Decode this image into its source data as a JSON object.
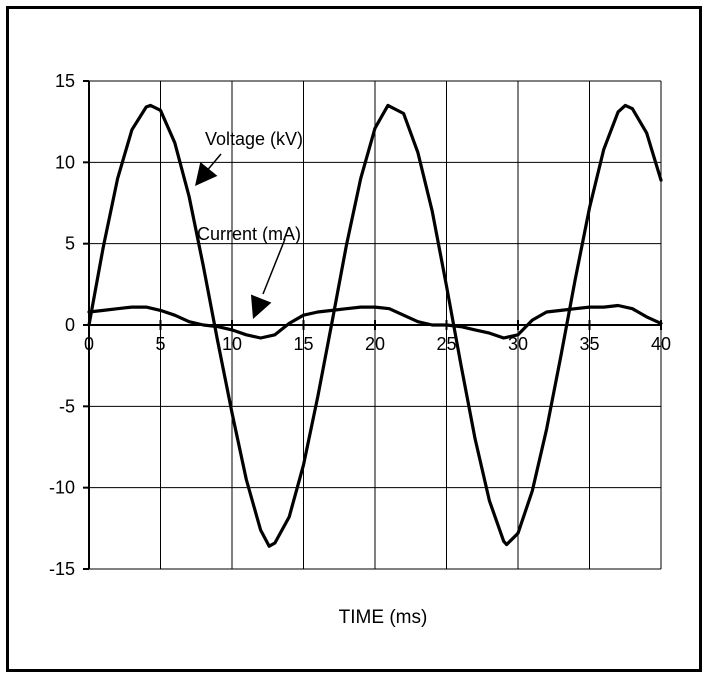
{
  "chart_data": {
    "type": "line",
    "title": "",
    "xlabel": "TIME (ms)",
    "ylabel": "",
    "xlim": [
      0,
      40
    ],
    "ylim": [
      -15,
      15
    ],
    "xticks": [
      "0",
      "5",
      "10",
      "15",
      "20",
      "25",
      "30",
      "35",
      "40"
    ],
    "yticks": [
      "15",
      "10",
      "5",
      "0",
      "-5",
      "-10",
      "-15"
    ],
    "grid": true,
    "legend": "none",
    "series": [
      {
        "name": "Voltage (kV)",
        "color": "#000000",
        "x": [
          0,
          1,
          2,
          3,
          4,
          4.3,
          5,
          6,
          7,
          8,
          9,
          10,
          11,
          12,
          12.6,
          13,
          14,
          15,
          16,
          17,
          18,
          19,
          20,
          20.9,
          22,
          23,
          24,
          25,
          26,
          27,
          28,
          29,
          29.2,
          30,
          31,
          32,
          33,
          34,
          35,
          36,
          37,
          37.5,
          38,
          39,
          40
        ],
        "values": [
          0,
          4.8,
          9.0,
          12.0,
          13.4,
          13.5,
          13.2,
          11.2,
          7.9,
          3.6,
          -1.0,
          -5.4,
          -9.5,
          -12.6,
          -13.6,
          -13.4,
          -11.8,
          -8.6,
          -4.4,
          0.2,
          4.9,
          9.0,
          12.1,
          13.5,
          13.0,
          10.6,
          7.0,
          2.4,
          -2.4,
          -7.0,
          -10.8,
          -13.3,
          -13.5,
          -12.8,
          -10.2,
          -6.4,
          -1.9,
          2.8,
          7.2,
          10.8,
          13.1,
          13.5,
          13.3,
          11.8,
          8.9
        ]
      },
      {
        "name": "Current (mA)",
        "color": "#000000",
        "x": [
          0,
          1,
          2,
          3,
          4,
          5,
          6,
          7,
          8,
          9,
          10,
          11,
          12,
          13,
          14,
          15,
          16,
          17,
          18,
          19,
          20,
          21,
          22,
          23,
          24,
          25,
          26,
          27,
          28,
          29,
          30,
          31,
          32,
          33,
          34,
          35,
          36,
          37,
          38,
          39,
          40
        ],
        "values": [
          0.8,
          0.9,
          1.0,
          1.1,
          1.1,
          0.9,
          0.6,
          0.2,
          0.0,
          -0.1,
          -0.3,
          -0.6,
          -0.8,
          -0.6,
          0.1,
          0.6,
          0.8,
          0.9,
          1.0,
          1.1,
          1.1,
          1.0,
          0.6,
          0.2,
          0.0,
          0.0,
          -0.1,
          -0.3,
          -0.5,
          -0.8,
          -0.6,
          0.3,
          0.8,
          0.9,
          1.0,
          1.1,
          1.1,
          1.2,
          1.0,
          0.5,
          0.1
        ]
      }
    ],
    "annotations": [
      {
        "text": "Voltage (kV)",
        "target_series": 0
      },
      {
        "text": "Current (mA)",
        "target_series": 1
      }
    ]
  }
}
